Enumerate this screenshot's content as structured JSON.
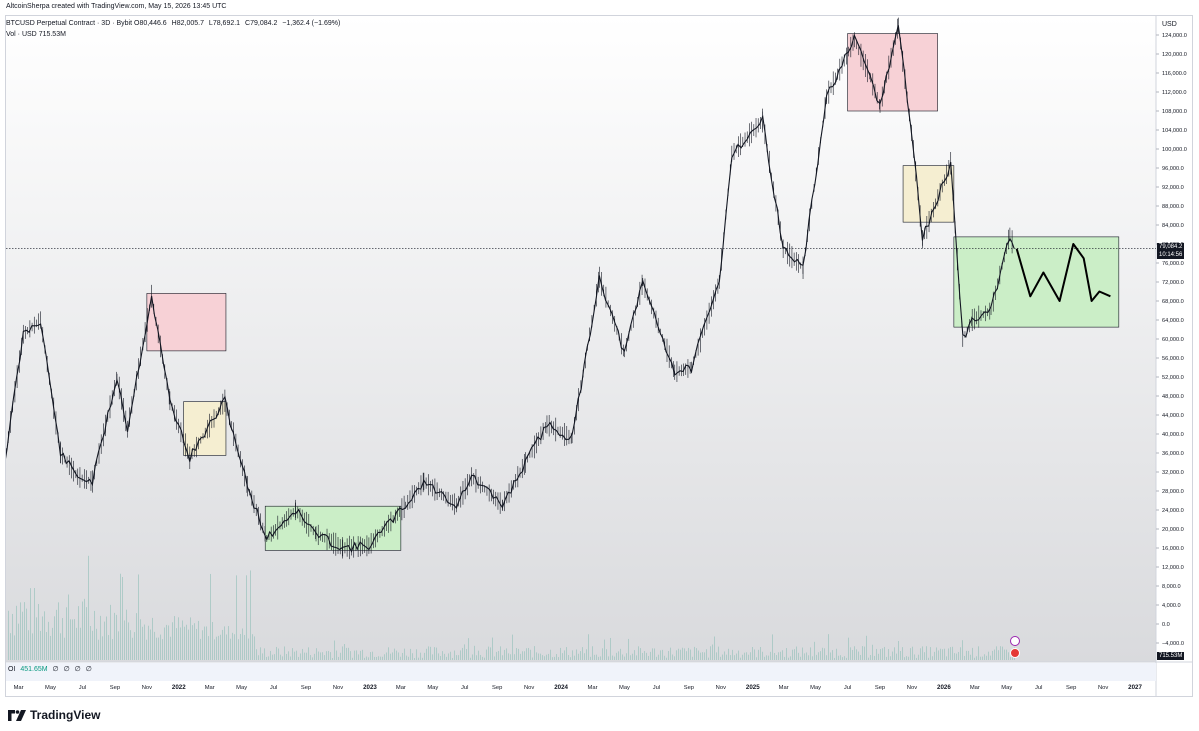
{
  "header": {
    "creator_line": "AltcoinSherpa created with TradingView.com, May 15, 2026 13:45 UTC"
  },
  "legend": {
    "symbol": "BTCUSD Perpetual Contract · 3D · Bybit",
    "ohlc": [
      {
        "label": "O",
        "value": "80,446.6"
      },
      {
        "label": "H",
        "value": "82,005.7"
      },
      {
        "label": "L",
        "value": "78,692.1"
      },
      {
        "label": "C",
        "value": "79,084.2"
      }
    ],
    "change": "−1,362.4 (−1.69%)",
    "volume_label": "Vol · USD",
    "volume_value": "715.53M"
  },
  "oi": {
    "label": "OI",
    "value": "451.65M",
    "extras": [
      "∅",
      "∅",
      "∅",
      "∅"
    ]
  },
  "price_scale": {
    "currency": "USD",
    "current_price": "79,084.2",
    "countdown": "10:14:56",
    "volume_tag": "715.53M"
  },
  "colors": {
    "candle": "#131722",
    "volume": "#8fb8b3",
    "red_zone": "#f4c5cb",
    "yellow_zone": "#f3ecc8",
    "green_zone": "#c6ecc2",
    "price_tag": "#131722"
  },
  "footer": {
    "brand": "TradingView"
  },
  "chart_data": {
    "type": "line",
    "title": "BTCUSD Perpetual Contract · 3D · Bybit",
    "ylabel": "USD",
    "ylim": [
      -8000,
      128000
    ],
    "y_ticks": [
      "124,000.0",
      "120,000.0",
      "116,000.0",
      "112,000.0",
      "108,000.0",
      "104,000.0",
      "100,000.0",
      "96,000.0",
      "92,000.0",
      "88,000.0",
      "84,000.0",
      "80,000.0",
      "76,000.0",
      "72,000.0",
      "68,000.0",
      "64,000.0",
      "60,000.0",
      "56,000.0",
      "52,000.0",
      "48,000.0",
      "44,000.0",
      "40,000.0",
      "36,000.0",
      "32,000.0",
      "28,000.0",
      "24,000.0",
      "20,000.0",
      "16,000.0",
      "12,000.0",
      "8,000.0",
      "4,000.0",
      "0.0",
      "−4,000.0"
    ],
    "y_tick_values": [
      124000,
      120000,
      116000,
      112000,
      108000,
      104000,
      100000,
      96000,
      92000,
      88000,
      84000,
      80000,
      76000,
      72000,
      68000,
      64000,
      60000,
      56000,
      52000,
      48000,
      44000,
      40000,
      36000,
      32000,
      28000,
      24000,
      20000,
      16000,
      12000,
      8000,
      4000,
      0,
      -4000
    ],
    "x_ticks": [
      "Mar",
      "May",
      "Jul",
      "Sep",
      "Nov",
      "2022",
      "Mar",
      "May",
      "Jul",
      "Sep",
      "Nov",
      "2023",
      "Mar",
      "May",
      "Jul",
      "Sep",
      "Nov",
      "2024",
      "Mar",
      "May",
      "Jul",
      "Sep",
      "Nov",
      "2025",
      "Mar",
      "May",
      "Jul",
      "Sep",
      "Nov",
      "2026",
      "Mar",
      "May",
      "Jul",
      "Sep",
      "Nov",
      "2027"
    ],
    "x_tick_dates": [
      "2021-03",
      "2021-05",
      "2021-07",
      "2021-09",
      "2021-11",
      "2022-01",
      "2022-03",
      "2022-05",
      "2022-07",
      "2022-09",
      "2022-11",
      "2023-01",
      "2023-03",
      "2023-05",
      "2023-07",
      "2023-09",
      "2023-11",
      "2024-01",
      "2024-03",
      "2024-05",
      "2024-07",
      "2024-09",
      "2024-11",
      "2025-01",
      "2025-03",
      "2025-05",
      "2025-07",
      "2025-09",
      "2025-11",
      "2026-01",
      "2026-03",
      "2026-05",
      "2026-07",
      "2026-09",
      "2026-11",
      "2027-01"
    ],
    "series": [
      {
        "values_x": [
          "2021-02-01",
          "2021-03-10",
          "2021-04-12",
          "2021-05-20",
          "2021-06-22",
          "2021-07-20",
          "2021-09-05",
          "2021-09-25",
          "2021-11-10",
          "2021-12-15",
          "2022-01-22",
          "2022-03-30",
          "2022-05-12",
          "2022-06-18",
          "2022-08-12",
          "2022-09-20",
          "2022-11-10",
          "2022-12-30",
          "2023-03-10",
          "2023-04-14",
          "2023-06-15",
          "2023-07-14",
          "2023-09-11",
          "2023-10-25",
          "2023-12-05",
          "2024-01-22",
          "2024-03-14",
          "2024-05-01",
          "2024-06-05",
          "2024-08-05",
          "2024-09-06",
          "2024-10-29",
          "2024-11-22",
          "2025-01-20",
          "2025-02-28",
          "2025-04-07",
          "2025-05-22",
          "2025-07-14",
          "2025-08-14",
          "2025-09-01",
          "2025-10-06",
          "2025-11-04",
          "2025-11-21",
          "2026-01-14",
          "2026-02-06",
          "2026-02-24",
          "2026-04-01",
          "2026-05-07",
          "2026-05-15"
        ],
        "values_y": [
          33000,
          61000,
          64000,
          36000,
          31000,
          30000,
          52000,
          41000,
          69000,
          47000,
          35000,
          47000,
          29000,
          18000,
          24000,
          19000,
          16000,
          16500,
          25000,
          30000,
          25000,
          31000,
          25000,
          34000,
          42000,
          39000,
          73000,
          57000,
          72000,
          53000,
          54000,
          72000,
          99000,
          106000,
          79000,
          75000,
          111000,
          123000,
          115000,
          109000,
          126000,
          100000,
          81000,
          97000,
          60000,
          64000,
          66000,
          82000,
          79084
        ]
      }
    ],
    "zones": [
      {
        "color": "red",
        "x_start": "2021-11-01",
        "x_end": "2022-04-01",
        "y_low": 57500,
        "y_high": 69600
      },
      {
        "color": "yellow",
        "x_start": "2022-01-10",
        "x_end": "2022-04-01",
        "y_low": 35500,
        "y_high": 46800
      },
      {
        "color": "green",
        "x_start": "2022-06-15",
        "x_end": "2023-03-01",
        "y_low": 15500,
        "y_high": 24800
      },
      {
        "color": "red",
        "x_start": "2025-07-01",
        "x_end": "2025-12-20",
        "y_low": 108000,
        "y_high": 124300
      },
      {
        "color": "yellow",
        "x_start": "2025-10-15",
        "x_end": "2026-01-20",
        "y_low": 84600,
        "y_high": 96500
      },
      {
        "color": "green",
        "x_start": "2026-01-20",
        "x_end": "2026-12-01",
        "y_low": 62500,
        "y_high": 81500
      }
    ],
    "projection": {
      "x": [
        "2026-05-20",
        "2026-06-15",
        "2026-07-10",
        "2026-08-10",
        "2026-09-05",
        "2026-09-25",
        "2026-10-10",
        "2026-10-25",
        "2026-11-15"
      ],
      "y": [
        79000,
        69000,
        74000,
        68000,
        80000,
        77000,
        68000,
        70000,
        69000
      ]
    },
    "grid": false,
    "legend": "top-left"
  }
}
